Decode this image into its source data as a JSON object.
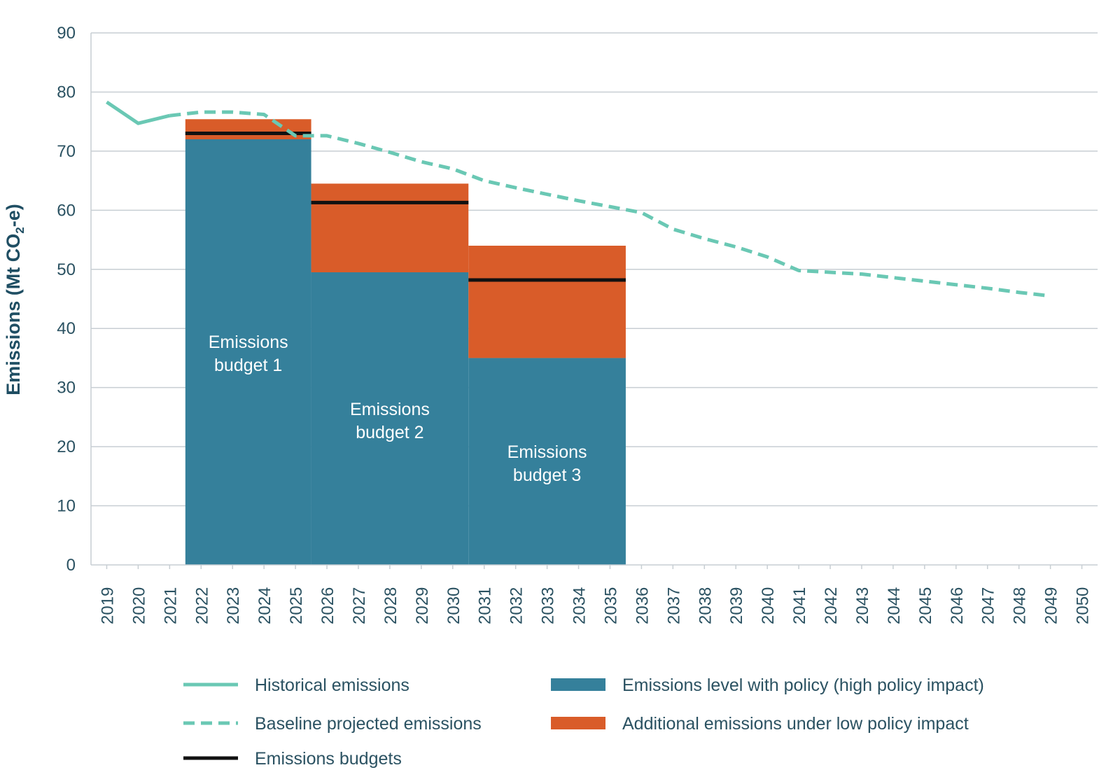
{
  "chart_data": {
    "type": "bar",
    "title": "",
    "xlabel": "",
    "ylabel": "Emissions (Mt CO",
    "ylabel_sub": "2",
    "ylabel_tail": "-e)",
    "ylim": [
      0,
      90
    ],
    "yticks": [
      0,
      10,
      20,
      30,
      40,
      50,
      60,
      70,
      80,
      90
    ],
    "years": [
      "2019",
      "2020",
      "2021",
      "2022",
      "2023",
      "2024",
      "2025",
      "2026",
      "2027",
      "2028",
      "2029",
      "2030",
      "2031",
      "2032",
      "2033",
      "2034",
      "2035",
      "2036",
      "2037",
      "2038",
      "2039",
      "2040",
      "2041",
      "2042",
      "2043",
      "2044",
      "2045",
      "2046",
      "2047",
      "2048",
      "2049",
      "2050"
    ],
    "historical": {
      "name": "Historical emissions",
      "years": [
        2019,
        2020,
        2021
      ],
      "values": [
        78.3,
        74.7,
        76.0
      ]
    },
    "baseline": {
      "name": "Baseline projected emissions",
      "years": [
        2021,
        2022,
        2023,
        2024,
        2025,
        2026,
        2027,
        2028,
        2029,
        2030,
        2031,
        2032,
        2033,
        2034,
        2035,
        2036,
        2037,
        2038,
        2039,
        2040,
        2041,
        2042,
        2043,
        2044,
        2045,
        2046,
        2047,
        2048,
        2049
      ],
      "values": [
        76.0,
        76.6,
        76.6,
        76.2,
        72.6,
        72.6,
        71.3,
        69.8,
        68.2,
        67.0,
        65.0,
        63.8,
        62.7,
        61.6,
        60.6,
        59.6,
        56.8,
        55.2,
        53.8,
        52.1,
        49.8,
        49.5,
        49.2,
        48.6,
        48.0,
        47.4,
        46.8,
        46.1,
        45.5
      ]
    },
    "budgets": [
      {
        "label_line1": "Emissions",
        "label_line2": "budget 1",
        "start": 2022,
        "end": 2025,
        "high_policy": 72.0,
        "low_policy_top": 75.4,
        "budget": 73.0
      },
      {
        "label_line1": "Emissions",
        "label_line2": "budget 2",
        "start": 2026,
        "end": 2030,
        "high_policy": 49.5,
        "low_policy_top": 64.5,
        "budget": 61.3
      },
      {
        "label_line1": "Emissions",
        "label_line2": "budget 3",
        "start": 2031,
        "end": 2035,
        "high_policy": 35.0,
        "low_policy_top": 54.0,
        "budget": 48.2
      }
    ],
    "legend": [
      {
        "key": "historical",
        "label": "Historical emissions"
      },
      {
        "key": "baseline",
        "label": "Baseline projected emissions"
      },
      {
        "key": "budget",
        "label": "Emissions budgets"
      },
      {
        "key": "high",
        "label": "Emissions level with policy (high policy impact)"
      },
      {
        "key": "low",
        "label": "Additional emissions under low policy impact"
      }
    ],
    "colors": {
      "high_policy": "#35809b",
      "low_policy": "#d95c29",
      "line": "#6ac8b4",
      "budget": "#111111",
      "grid": "#c7ced3",
      "axis": "#2b5262"
    }
  }
}
